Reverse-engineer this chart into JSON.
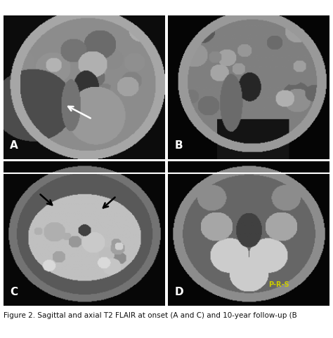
{
  "figure_size": [
    4.74,
    4.82
  ],
  "dpi": 100,
  "background_color": "#ffffff",
  "panels": [
    "A",
    "B",
    "C",
    "D"
  ],
  "label_color_AB": "#ffffff",
  "label_color_CD": "#ffffff",
  "caption": "Figure 2. Sagittal and axial T2 FLAIR at onset (A and C) and 10-year follow-up (B",
  "caption_fontsize": 7.5,
  "panel_label_fontsize": 11,
  "annotation_label": "P-R-S",
  "annotation_color": "#cccc00"
}
